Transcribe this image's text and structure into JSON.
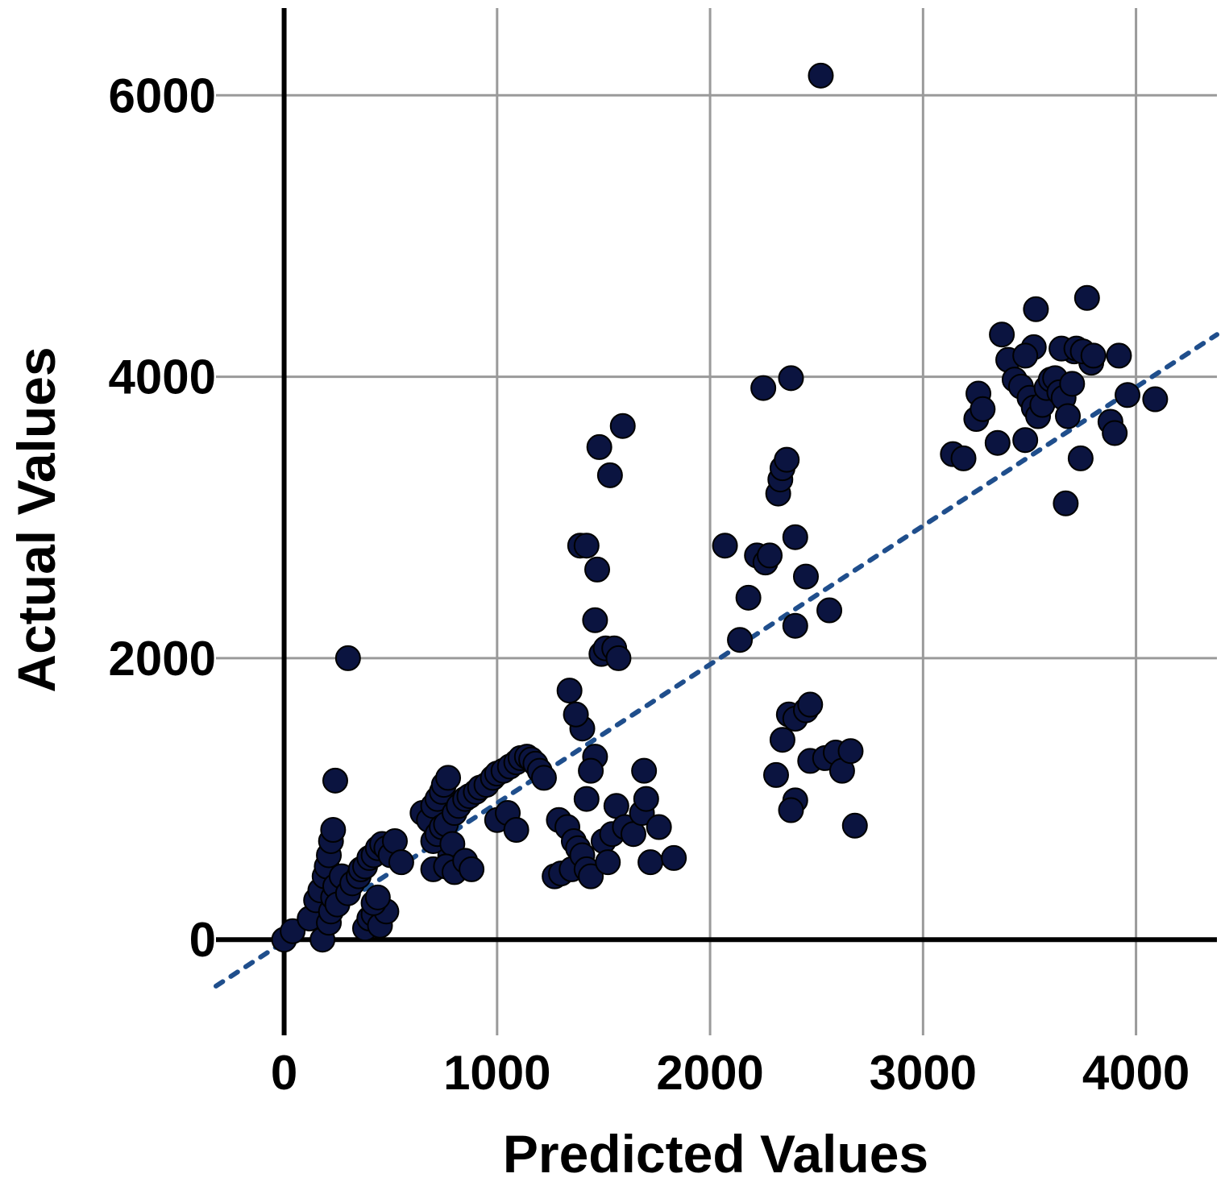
{
  "chart_data": {
    "type": "scatter",
    "title": "",
    "xlabel": "Predicted Values",
    "ylabel": "Actual Values",
    "xlim": [
      -320,
      4380
    ],
    "ylim": [
      -680,
      6620
    ],
    "xticks": [
      0,
      1000,
      2000,
      3000,
      4000
    ],
    "yticks": [
      0,
      2000,
      4000,
      6000
    ],
    "grid": true,
    "legend": "none",
    "colors": {
      "points": "#0b1440",
      "trendline": "#1f4e8c",
      "grid": "#9a9a9a",
      "axis": "#000000"
    },
    "trendline": {
      "style": "dotted",
      "from": [
        -320,
        -330
      ],
      "to": [
        4380,
        4300
      ]
    },
    "series": [
      {
        "points": [
          [
            0,
            0
          ],
          [
            40,
            60
          ],
          [
            120,
            150
          ],
          [
            150,
            280
          ],
          [
            170,
            350
          ],
          [
            190,
            450
          ],
          [
            200,
            520
          ],
          [
            210,
            600
          ],
          [
            220,
            700
          ],
          [
            230,
            780
          ],
          [
            180,
            0
          ],
          [
            210,
            120
          ],
          [
            220,
            200
          ],
          [
            230,
            300
          ],
          [
            240,
            380
          ],
          [
            250,
            250
          ],
          [
            270,
            450
          ],
          [
            300,
            330
          ],
          [
            320,
            400
          ],
          [
            350,
            450
          ],
          [
            360,
            500
          ],
          [
            380,
            520
          ],
          [
            400,
            580
          ],
          [
            420,
            600
          ],
          [
            440,
            650
          ],
          [
            460,
            680
          ],
          [
            480,
            650
          ],
          [
            500,
            600
          ],
          [
            520,
            700
          ],
          [
            550,
            550
          ],
          [
            240,
            1130
          ],
          [
            300,
            2000
          ],
          [
            380,
            80
          ],
          [
            400,
            150
          ],
          [
            420,
            180
          ],
          [
            450,
            100
          ],
          [
            480,
            200
          ],
          [
            420,
            260
          ],
          [
            440,
            300
          ],
          [
            650,
            900
          ],
          [
            680,
            850
          ],
          [
            700,
            950
          ],
          [
            720,
            1000
          ],
          [
            740,
            1050
          ],
          [
            750,
            1100
          ],
          [
            770,
            1150
          ],
          [
            780,
            600
          ],
          [
            700,
            700
          ],
          [
            720,
            750
          ],
          [
            740,
            800
          ],
          [
            760,
            820
          ],
          [
            790,
            680
          ],
          [
            800,
            900
          ],
          [
            820,
            950
          ],
          [
            850,
            1000
          ],
          [
            870,
            1020
          ],
          [
            900,
            1050
          ],
          [
            920,
            1080
          ],
          [
            950,
            1100
          ],
          [
            980,
            1150
          ],
          [
            1000,
            1180
          ],
          [
            1030,
            1200
          ],
          [
            1060,
            1230
          ],
          [
            1090,
            1260
          ],
          [
            1110,
            1290
          ],
          [
            1140,
            1300
          ],
          [
            1160,
            1280
          ],
          [
            1180,
            1250
          ],
          [
            1200,
            1200
          ],
          [
            1220,
            1150
          ],
          [
            700,
            500
          ],
          [
            760,
            520
          ],
          [
            800,
            480
          ],
          [
            850,
            560
          ],
          [
            880,
            500
          ],
          [
            1000,
            850
          ],
          [
            1050,
            900
          ],
          [
            1090,
            780
          ],
          [
            1270,
            450
          ],
          [
            1300,
            470
          ],
          [
            1350,
            500
          ],
          [
            1290,
            850
          ],
          [
            1330,
            800
          ],
          [
            1360,
            700
          ],
          [
            1380,
            650
          ],
          [
            1400,
            600
          ],
          [
            1420,
            500
          ],
          [
            1440,
            450
          ],
          [
            1460,
            1300
          ],
          [
            1440,
            1200
          ],
          [
            1420,
            1000
          ],
          [
            1400,
            1500
          ],
          [
            1370,
            1600
          ],
          [
            1340,
            1770
          ],
          [
            1390,
            2800
          ],
          [
            1420,
            2800
          ],
          [
            1470,
            2630
          ],
          [
            1460,
            2270
          ],
          [
            1490,
            2030
          ],
          [
            1510,
            2070
          ],
          [
            1550,
            2070
          ],
          [
            1570,
            2000
          ],
          [
            1480,
            3500
          ],
          [
            1530,
            3300
          ],
          [
            1590,
            3650
          ],
          [
            1500,
            700
          ],
          [
            1540,
            750
          ],
          [
            1520,
            550
          ],
          [
            1560,
            950
          ],
          [
            1600,
            800
          ],
          [
            1640,
            750
          ],
          [
            1680,
            900
          ],
          [
            1690,
            1200
          ],
          [
            1700,
            1000
          ],
          [
            1720,
            550
          ],
          [
            1760,
            800
          ],
          [
            1830,
            580
          ],
          [
            2070,
            2800
          ],
          [
            2140,
            2130
          ],
          [
            2180,
            2430
          ],
          [
            2220,
            2730
          ],
          [
            2260,
            2680
          ],
          [
            2280,
            2730
          ],
          [
            2250,
            3920
          ],
          [
            2380,
            3990
          ],
          [
            2320,
            3170
          ],
          [
            2330,
            3270
          ],
          [
            2340,
            3350
          ],
          [
            2360,
            3410
          ],
          [
            2400,
            2860
          ],
          [
            2400,
            2230
          ],
          [
            2450,
            2580
          ],
          [
            2560,
            2340
          ],
          [
            2310,
            1170
          ],
          [
            2340,
            1420
          ],
          [
            2370,
            1600
          ],
          [
            2400,
            1570
          ],
          [
            2450,
            1630
          ],
          [
            2470,
            1670
          ],
          [
            2400,
            990
          ],
          [
            2380,
            920
          ],
          [
            2470,
            1270
          ],
          [
            2540,
            1290
          ],
          [
            2590,
            1330
          ],
          [
            2620,
            1200
          ],
          [
            2660,
            1340
          ],
          [
            2680,
            810
          ],
          [
            2520,
            6140
          ],
          [
            3140,
            3450
          ],
          [
            3190,
            3420
          ],
          [
            3250,
            3700
          ],
          [
            3260,
            3880
          ],
          [
            3280,
            3770
          ],
          [
            3350,
            3530
          ],
          [
            3370,
            4300
          ],
          [
            3400,
            4120
          ],
          [
            3430,
            3980
          ],
          [
            3460,
            3930
          ],
          [
            3480,
            3550
          ],
          [
            3500,
            3850
          ],
          [
            3520,
            3780
          ],
          [
            3540,
            3720
          ],
          [
            3560,
            3800
          ],
          [
            3580,
            3920
          ],
          [
            3600,
            3980
          ],
          [
            3620,
            3990
          ],
          [
            3640,
            3890
          ],
          [
            3660,
            3850
          ],
          [
            3680,
            3720
          ],
          [
            3700,
            3950
          ],
          [
            3710,
            4180
          ],
          [
            3740,
            3420
          ],
          [
            3770,
            4560
          ],
          [
            3790,
            4100
          ],
          [
            3880,
            3680
          ],
          [
            3900,
            3600
          ],
          [
            3920,
            4150
          ],
          [
            3960,
            3870
          ],
          [
            4090,
            3840
          ],
          [
            3530,
            4480
          ],
          [
            3520,
            4210
          ],
          [
            3480,
            4150
          ],
          [
            3650,
            4200
          ],
          [
            3670,
            3100
          ],
          [
            3720,
            4200
          ],
          [
            3750,
            4180
          ],
          [
            3800,
            4150
          ]
        ]
      }
    ]
  }
}
